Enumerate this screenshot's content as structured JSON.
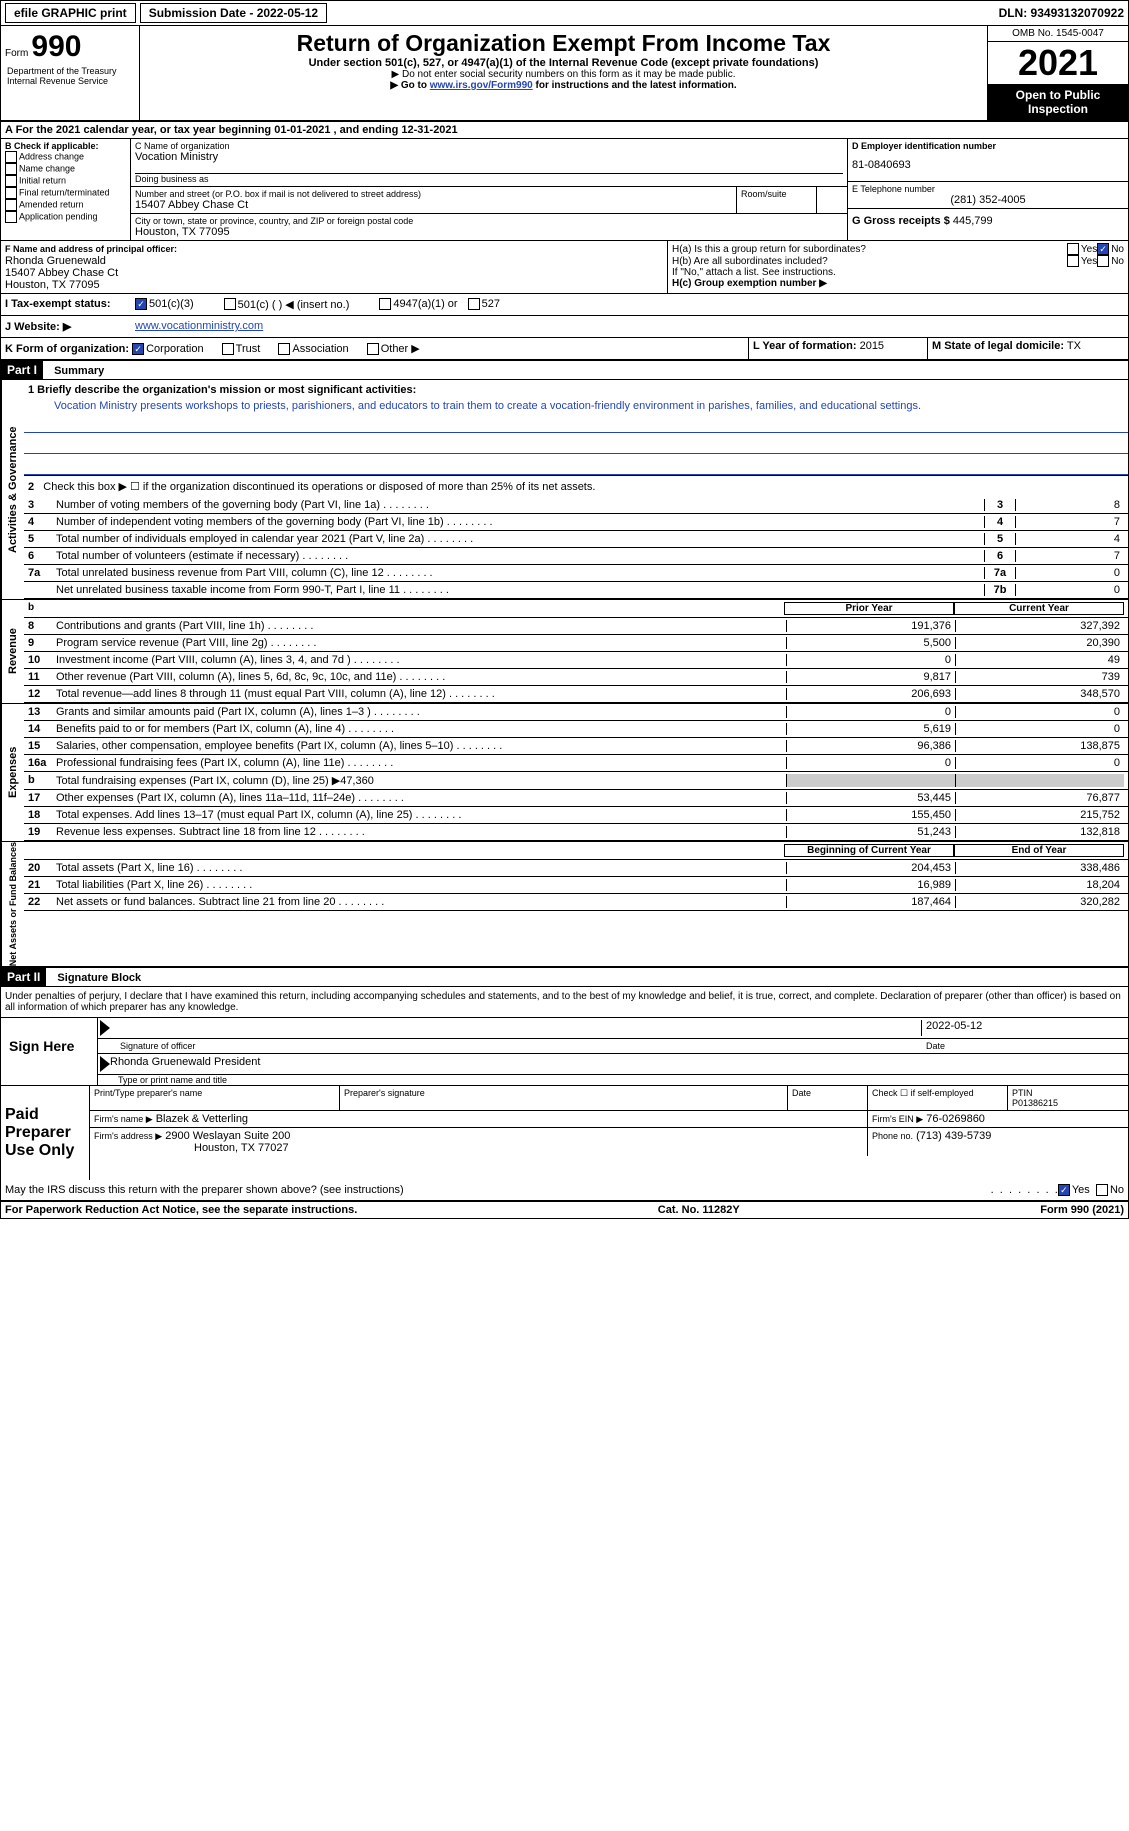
{
  "topbar": {
    "btn1": "efile GRAPHIC print",
    "btn2": "Submission Date - 2022-05-12",
    "dln": "DLN: 93493132070922"
  },
  "header": {
    "form_prefix": "Form",
    "form_number": "990",
    "dept": "Department of the Treasury Internal Revenue Service",
    "title": "Return of Organization Exempt From Income Tax",
    "subtitle": "Under section 501(c), 527, or 4947(a)(1) of the Internal Revenue Code (except private foundations)",
    "notice1": "▶ Do not enter social security numbers on this form as it may be made public.",
    "notice2_pre": "▶ Go to ",
    "notice2_link": "www.irs.gov/Form990",
    "notice2_post": " for instructions and the latest information.",
    "omb": "OMB No. 1545-0047",
    "year": "2021",
    "inspect": "Open to Public Inspection"
  },
  "period": {
    "text_pre": "A For the 2021 calendar year, or tax year beginning ",
    "begin": "01-01-2021",
    "text_mid": " , and ending ",
    "end": "12-31-2021"
  },
  "section_b": {
    "label": "B Check if applicable:",
    "items": [
      "Address change",
      "Name change",
      "Initial return",
      "Final return/terminated",
      "Amended return",
      "Application pending"
    ]
  },
  "section_c": {
    "name_label": "C Name of organization",
    "name": "Vocation Ministry",
    "dba_label": "Doing business as",
    "addr_label": "Number and street (or P.O. box if mail is not delivered to street address)",
    "room_label": "Room/suite",
    "addr": "15407 Abbey Chase Ct",
    "city_label": "City or town, state or province, country, and ZIP or foreign postal code",
    "city": "Houston, TX  77095"
  },
  "section_d": {
    "label": "D Employer identification number",
    "ein": "81-0840693"
  },
  "section_e": {
    "label": "E Telephone number",
    "phone": "(281) 352-4005"
  },
  "section_g": {
    "label": "G Gross receipts $",
    "amount": "445,799"
  },
  "section_f": {
    "label": "F Name and address of principal officer:",
    "name": "Rhonda Gruenewald",
    "addr1": "15407 Abbey Chase Ct",
    "addr2": "Houston, TX  77095"
  },
  "section_h": {
    "a": "H(a) Is this a group return for subordinates?",
    "b": "H(b) Are all subordinates included?",
    "b_note": "If \"No,\" attach a list. See instructions.",
    "c": "H(c) Group exemption number ▶",
    "yes": "Yes",
    "no": "No"
  },
  "section_i": {
    "label": "I Tax-exempt status:",
    "o1": "501(c)(3)",
    "o2": "501(c) (  ) ◀ (insert no.)",
    "o3": "4947(a)(1) or",
    "o4": "527"
  },
  "section_j": {
    "label": "J Website: ▶",
    "url": "www.vocationministry.com"
  },
  "section_k": {
    "label": "K Form of organization:",
    "o1": "Corporation",
    "o2": "Trust",
    "o3": "Association",
    "o4": "Other ▶"
  },
  "section_l": {
    "label": "L Year of formation:",
    "year": "2015"
  },
  "section_m": {
    "label": "M State of legal domicile:",
    "state": "TX"
  },
  "part1": {
    "header": "Part I",
    "title": "Summary",
    "line1_label": "1 Briefly describe the organization's mission or most significant activities:",
    "mission": "Vocation Ministry presents workshops to priests, parishioners, and educators to train them to create a vocation-friendly environment in parishes, families, and educational settings.",
    "governance_label": "Activities & Governance",
    "revenue_label": "Revenue",
    "expenses_label": "Expenses",
    "netassets_label": "Net Assets or Fund Balances",
    "line2": "Check this box ▶ ☐ if the organization discontinued its operations or disposed of more than 25% of its net assets.",
    "prior_year": "Prior Year",
    "current_year": "Current Year",
    "boy": "Beginning of Current Year",
    "eoy": "End of Year",
    "gov_lines": [
      {
        "num": "3",
        "desc": "Number of voting members of the governing body (Part VI, line 1a)",
        "key": "3",
        "val": "8"
      },
      {
        "num": "4",
        "desc": "Number of independent voting members of the governing body (Part VI, line 1b)",
        "key": "4",
        "val": "7"
      },
      {
        "num": "5",
        "desc": "Total number of individuals employed in calendar year 2021 (Part V, line 2a)",
        "key": "5",
        "val": "4"
      },
      {
        "num": "6",
        "desc": "Total number of volunteers (estimate if necessary)",
        "key": "6",
        "val": "7"
      },
      {
        "num": "7a",
        "desc": "Total unrelated business revenue from Part VIII, column (C), line 12",
        "key": "7a",
        "val": "0"
      },
      {
        "num": "",
        "desc": "Net unrelated business taxable income from Form 990-T, Part I, line 11",
        "key": "7b",
        "val": "0"
      }
    ],
    "rev_lines": [
      {
        "num": "8",
        "desc": "Contributions and grants (Part VIII, line 1h)",
        "py": "191,376",
        "cy": "327,392"
      },
      {
        "num": "9",
        "desc": "Program service revenue (Part VIII, line 2g)",
        "py": "5,500",
        "cy": "20,390"
      },
      {
        "num": "10",
        "desc": "Investment income (Part VIII, column (A), lines 3, 4, and 7d )",
        "py": "0",
        "cy": "49"
      },
      {
        "num": "11",
        "desc": "Other revenue (Part VIII, column (A), lines 5, 6d, 8c, 9c, 10c, and 11e)",
        "py": "9,817",
        "cy": "739"
      },
      {
        "num": "12",
        "desc": "Total revenue—add lines 8 through 11 (must equal Part VIII, column (A), line 12)",
        "py": "206,693",
        "cy": "348,570"
      }
    ],
    "exp_lines": [
      {
        "num": "13",
        "desc": "Grants and similar amounts paid (Part IX, column (A), lines 1–3 )",
        "py": "0",
        "cy": "0"
      },
      {
        "num": "14",
        "desc": "Benefits paid to or for members (Part IX, column (A), line 4)",
        "py": "5,619",
        "cy": "0"
      },
      {
        "num": "15",
        "desc": "Salaries, other compensation, employee benefits (Part IX, column (A), lines 5–10)",
        "py": "96,386",
        "cy": "138,875"
      },
      {
        "num": "16a",
        "desc": "Professional fundraising fees (Part IX, column (A), line 11e)",
        "py": "0",
        "cy": "0"
      },
      {
        "num": "b",
        "desc": "Total fundraising expenses (Part IX, column (D), line 25) ▶47,360",
        "py": "",
        "cy": "",
        "grey": true
      },
      {
        "num": "17",
        "desc": "Other expenses (Part IX, column (A), lines 11a–11d, 11f–24e)",
        "py": "53,445",
        "cy": "76,877"
      },
      {
        "num": "18",
        "desc": "Total expenses. Add lines 13–17 (must equal Part IX, column (A), line 25)",
        "py": "155,450",
        "cy": "215,752"
      },
      {
        "num": "19",
        "desc": "Revenue less expenses. Subtract line 18 from line 12",
        "py": "51,243",
        "cy": "132,818"
      }
    ],
    "na_lines": [
      {
        "num": "20",
        "desc": "Total assets (Part X, line 16)",
        "py": "204,453",
        "cy": "338,486"
      },
      {
        "num": "21",
        "desc": "Total liabilities (Part X, line 26)",
        "py": "16,989",
        "cy": "18,204"
      },
      {
        "num": "22",
        "desc": "Net assets or fund balances. Subtract line 21 from line 20",
        "py": "187,464",
        "cy": "320,282"
      }
    ]
  },
  "part2": {
    "header": "Part II",
    "title": "Signature Block",
    "penalties": "Under penalties of perjury, I declare that I have examined this return, including accompanying schedules and statements, and to the best of my knowledge and belief, it is true, correct, and complete. Declaration of preparer (other than officer) is based on all information of which preparer has any knowledge.",
    "sign_here": "Sign Here",
    "sig_officer": "Signature of officer",
    "date": "Date",
    "sig_date": "2022-05-12",
    "printed": "Rhonda Gruenewald  President",
    "printed_label": "Type or print name and title",
    "paid": "Paid Preparer Use Only",
    "prep_name_label": "Print/Type preparer's name",
    "prep_sig_label": "Preparer's signature",
    "prep_date_label": "Date",
    "check_self": "Check ☐ if self-employed",
    "ptin_label": "PTIN",
    "ptin": "P01386215",
    "firm_name_label": "Firm's name  ▶",
    "firm_name": "Blazek & Vetterling",
    "firm_ein_label": "Firm's EIN ▶",
    "firm_ein": "76-0269860",
    "firm_addr_label": "Firm's address ▶",
    "firm_addr1": "2900 Weslayan Suite 200",
    "firm_addr2": "Houston, TX  77027",
    "firm_phone_label": "Phone no.",
    "firm_phone": "(713) 439-5739",
    "discuss": "May the IRS discuss this return with the preparer shown above? (see instructions)",
    "yes": "Yes",
    "no": "No"
  },
  "footer": {
    "left": "For Paperwork Reduction Act Notice, see the separate instructions.",
    "center": "Cat. No. 11282Y",
    "right": "Form 990 (2021)"
  }
}
